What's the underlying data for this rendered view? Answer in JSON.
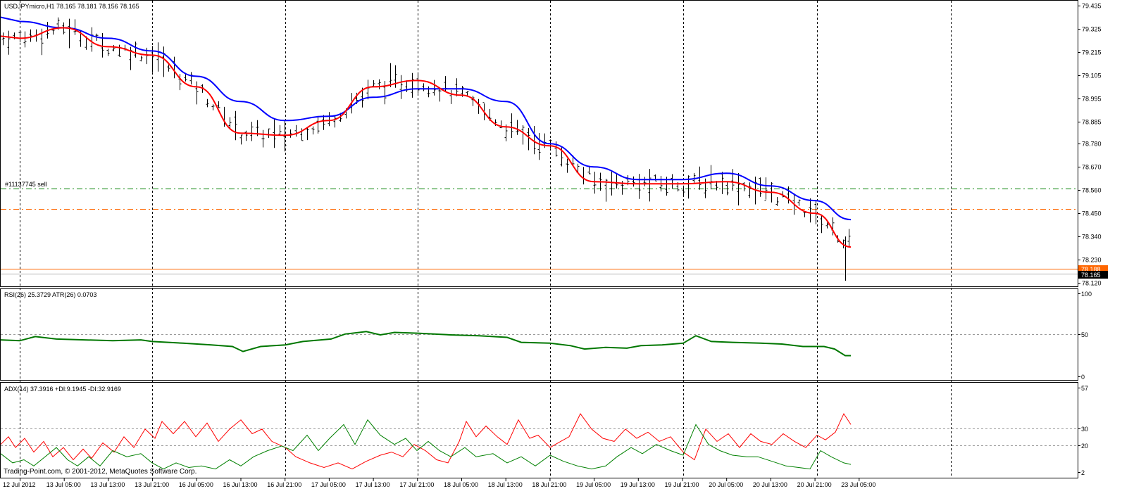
{
  "main_panel": {
    "title": "USDJPYmicro,H1  78.165 78.181 78.156 78.165",
    "price_labels": [
      "79.435",
      "79.325",
      "79.215",
      "79.105",
      "78.995",
      "78.885",
      "78.780",
      "78.670",
      "78.560",
      "78.450",
      "78.340",
      "78.230",
      "78.120"
    ],
    "order_label": "#11137745 sell",
    "order_price": 78.575,
    "stop_price": 78.475,
    "bid_price": 78.188,
    "bid_label": "78.188",
    "current_label": "78.165",
    "ylim": [
      78.105,
      79.448
    ]
  },
  "rsi_panel": {
    "title": "RSI(26) 25.3729  ATR(26) 0.0703",
    "levels": [
      "100",
      "50",
      "0"
    ]
  },
  "adx_panel": {
    "title": "ADX(14) 37.3916 +DI:9.1945 -DI:32.9169",
    "levels": [
      "57",
      "30",
      "20",
      "2"
    ],
    "copyright": "Trading-Point.com, © 2001-2012, MetaQuotes Software Corp."
  },
  "time_labels": [
    "12 Jul 2012",
    "13 Jul 05:00",
    "13 Jul 13:00",
    "13 Jul 21:00",
    "16 Jul 05:00",
    "16 Jul 13:00",
    "16 Jul 21:00",
    "17 Jul 05:00",
    "17 Jul 13:00",
    "17 Jul 21:00",
    "18 Jul 05:00",
    "18 Jul 13:00",
    "18 Jul 21:00",
    "19 Jul 05:00",
    "19 Jul 13:00",
    "19 Jul 21:00",
    "20 Jul 05:00",
    "20 Jul 13:00",
    "20 Jul 21:00",
    "23 Jul 05:00"
  ],
  "colors": {
    "background": "#ffffff",
    "grid": "#000000",
    "bars": "#000000",
    "fast_ma": "#ff0000",
    "slow_ma": "#0000ff",
    "order_line": "#008000",
    "stop_line": "#ff6600",
    "bid_line": "#ff6600",
    "rsi": "#008000",
    "adx_plus_di": "#008000",
    "adx_minus_di": "#ff0000"
  },
  "chart_data": {
    "type": "line",
    "x": [
      "12 Jul 2012",
      "13 Jul 05:00",
      "13 Jul 13:00",
      "13 Jul 21:00",
      "16 Jul 05:00",
      "16 Jul 13:00",
      "16 Jul 21:00",
      "17 Jul 05:00",
      "17 Jul 13:00",
      "17 Jul 21:00",
      "18 Jul 05:00",
      "18 Jul 13:00",
      "18 Jul 21:00",
      "19 Jul 05:00",
      "19 Jul 13:00",
      "19 Jul 21:00",
      "20 Jul 05:00",
      "20 Jul 13:00",
      "20 Jul 21:00",
      "23 Jul 05:00"
    ],
    "series": [
      {
        "name": "",
        "color": "#ff0000",
        "values": [
          79.28,
          79.33,
          79.24,
          79.2,
          79.05,
          78.83,
          78.82,
          78.89,
          79.05,
          79.08,
          79.01,
          78.86,
          78.77,
          78.6,
          78.59,
          78.59,
          78.6,
          78.55,
          78.45,
          78.29
        ]
      },
      {
        "name": "",
        "color": "#0000ff",
        "values": [
          79.36,
          79.33,
          79.28,
          79.22,
          79.1,
          78.98,
          78.89,
          78.91,
          79.0,
          79.04,
          79.04,
          78.98,
          78.78,
          78.67,
          78.61,
          78.61,
          78.64,
          78.58,
          78.51,
          78.42
        ]
      }
    ],
    "ylim": [
      78.105,
      79.448
    ]
  }
}
